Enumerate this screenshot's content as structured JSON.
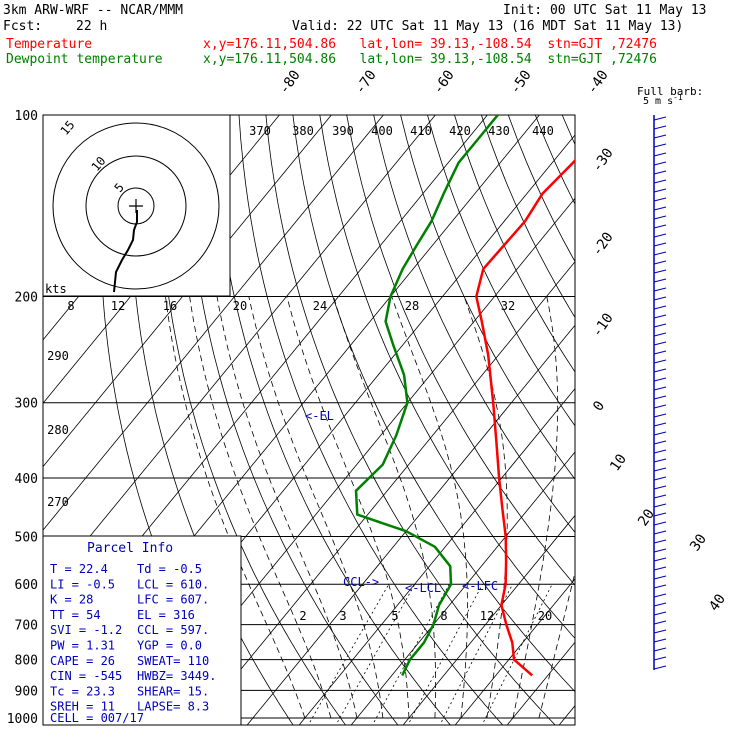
{
  "header": {
    "model": "3km ARW-WRF -- NCAR/MMM",
    "init": "Init: 00 UTC Sat 11 May 13",
    "fcst_label": "Fcst:",
    "fcst_value": "22 h",
    "valid": "Valid: 22 UTC Sat 11 May 13 (16 MDT Sat 11 May 13)",
    "temp_label": "Temperature",
    "temp_info": "x,y=176.11,504.86   lat,lon= 39.13,-108.54  stn=GJT ,72476",
    "dew_label": "Dewpoint temperature",
    "dew_info": "x,y=176.11,504.86   lat,lon= 39.13,-108.54  stn=GJT ,72476"
  },
  "colors": {
    "temperature": "#ff0000",
    "dewpoint": "#008000",
    "annotation": "#0000c0",
    "axes": "#000000"
  },
  "chart_data": [
    {
      "type": "line",
      "subtype": "skew-T log-p sounding",
      "y_axis": "pressure (hPa)",
      "pressure_ticks": [
        100,
        200,
        300,
        400,
        500,
        600,
        700,
        800,
        900,
        1000
      ],
      "isotherm_labels": [
        -80,
        -70,
        -60,
        -50,
        -40,
        -30,
        -20,
        -10,
        0,
        10,
        20,
        30,
        40
      ],
      "mixing_ratio_labels": [
        "2",
        "3",
        "5",
        "8",
        "12",
        "20"
      ],
      "theta_labels": [
        "370",
        "380",
        "390",
        "400",
        "410",
        "420",
        "430",
        "440",
        "290",
        "280",
        "270"
      ],
      "series": [
        {
          "name": "Temperature",
          "color": "#ff0000",
          "points": [
            [
              850,
              27
            ],
            [
              800,
              21
            ],
            [
              750,
              18
            ],
            [
              700,
              14
            ],
            [
              650,
              10
            ],
            [
              600,
              7.5
            ],
            [
              550,
              4
            ],
            [
              500,
              0
            ],
            [
              450,
              -5
            ],
            [
              400,
              -10.5
            ],
            [
              350,
              -16.5
            ],
            [
              300,
              -23.5
            ],
            [
              250,
              -32
            ],
            [
              220,
              -38.5
            ],
            [
              200,
              -43.5
            ],
            [
              180,
              -46.5
            ],
            [
              150,
              -46
            ],
            [
              135,
              -47
            ],
            [
              120,
              -46
            ],
            [
              100,
              -45
            ]
          ]
        },
        {
          "name": "Dewpoint temperature",
          "color": "#008000",
          "points": [
            [
              850,
              2
            ],
            [
              800,
              1
            ],
            [
              750,
              1
            ],
            [
              700,
              0
            ],
            [
              650,
              -2
            ],
            [
              600,
              -3
            ],
            [
              560,
              -6
            ],
            [
              520,
              -12
            ],
            [
              490,
              -20
            ],
            [
              460,
              -32
            ],
            [
              420,
              -36
            ],
            [
              380,
              -35
            ],
            [
              340,
              -37
            ],
            [
              300,
              -40
            ],
            [
              270,
              -45
            ],
            [
              240,
              -52
            ],
            [
              220,
              -57
            ],
            [
              200,
              -60
            ],
            [
              180,
              -62
            ],
            [
              165,
              -63
            ],
            [
              150,
              -64
            ],
            [
              135,
              -66
            ],
            [
              120,
              -68
            ],
            [
              110,
              -68
            ],
            [
              100,
              -68
            ]
          ]
        }
      ],
      "annotations": [
        "<-EL",
        "CCL->",
        "<-LCL",
        "<-LFC"
      ]
    },
    {
      "type": "line",
      "subtype": "hodograph",
      "unit_label": "kts",
      "ring_labels": [
        "5",
        "10",
        "15"
      ],
      "x_tick_labels": [
        "8",
        "12",
        "16",
        "20",
        "24",
        "28",
        "32"
      ]
    }
  ],
  "wind": {
    "title": "Full barb:",
    "unit": "5 m s",
    "unit_sup": "-1"
  },
  "parcel": {
    "title": "Parcel Info",
    "rows": [
      [
        "T   =   22.4",
        "Td  =  -0.5"
      ],
      [
        "LI  =   -0.5",
        "LCL =  610."
      ],
      [
        "K   =     28",
        "LFC =  607."
      ],
      [
        "TT  =     54",
        "EL  =   316"
      ],
      [
        "SVI =   -1.2",
        "CCL =  597."
      ],
      [
        "PW  =   1.31",
        "YGP =   0.0"
      ],
      [
        "CAPE =    26",
        "SWEAT=  110"
      ],
      [
        "CIN  =  -545",
        "HWBZ= 3449."
      ],
      [
        "Tc  =   23.3",
        "SHEAR=  15."
      ],
      [
        "SREH =    11",
        "LAPSE=  8.3"
      ]
    ],
    "cell": "CELL = 007/17"
  }
}
